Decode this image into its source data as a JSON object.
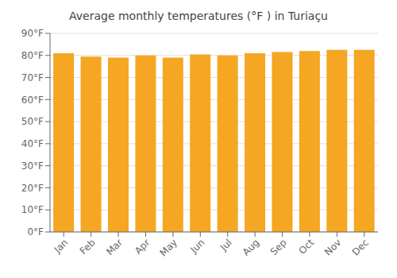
{
  "chart_data": {
    "type": "bar",
    "title": "Average monthly temperatures (°F ) in Turiaçu",
    "categories": [
      "Jan",
      "Feb",
      "Mar",
      "Apr",
      "May",
      "Jun",
      "Jul",
      "Aug",
      "Sep",
      "Oct",
      "Nov",
      "Dec"
    ],
    "values": [
      81,
      79.5,
      79,
      80,
      79,
      80.5,
      80,
      81,
      81.5,
      82,
      82.5,
      82.5
    ],
    "color": "#F5A623",
    "ylim": [
      0,
      90
    ],
    "yticks": [
      {
        "value": 0,
        "label": "0°F"
      },
      {
        "value": 10,
        "label": "10°F"
      },
      {
        "value": 20,
        "label": "20°F"
      },
      {
        "value": 30,
        "label": "30°F"
      },
      {
        "value": 40,
        "label": "40°F"
      },
      {
        "value": 50,
        "label": "50°F"
      },
      {
        "value": 60,
        "label": "60°F"
      },
      {
        "value": 70,
        "label": "70°F"
      },
      {
        "value": 80,
        "label": "80°F"
      },
      {
        "value": 90,
        "label": "90°F"
      }
    ],
    "grid": true
  }
}
